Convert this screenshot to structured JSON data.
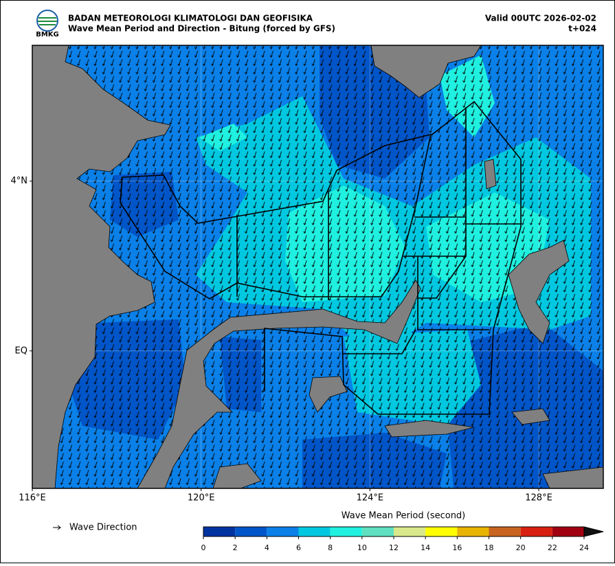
{
  "header": {
    "agency": "BADAN METEOROLOGI KLIMATOLOGI DAN GEOFISIKA",
    "title": "Wave Mean Period and Direction - Bitung (forced by GFS)",
    "valid": "Valid 00UTC 2026-02-02",
    "lead": "t+024",
    "logo": "BMKG"
  },
  "map": {
    "xlim": [
      116,
      129.53
    ],
    "ylim": [
      -3.24,
      7.2
    ],
    "xticks": [
      {
        "value": 116,
        "label": "116°E"
      },
      {
        "value": 120,
        "label": "120°E"
      },
      {
        "value": 124,
        "label": "124°E"
      },
      {
        "value": 128,
        "label": "128°E"
      }
    ],
    "yticks": [
      {
        "value": 4,
        "label": "4°N"
      },
      {
        "value": 0,
        "label": "EQ"
      }
    ],
    "grid": true
  },
  "legend": {
    "label": "Wave Direction"
  },
  "colorbar": {
    "title": "Wave Mean Period (second)",
    "ticks": [
      0,
      2,
      4,
      6,
      8,
      10,
      12,
      14,
      16,
      18,
      20,
      22,
      24
    ],
    "colors": [
      "#0033a0",
      "#0055c8",
      "#0a80e8",
      "#00c8e0",
      "#20f0e0",
      "#60e0c0",
      "#d8e88a",
      "#ffff00",
      "#e8b400",
      "#c86420",
      "#d82010",
      "#a00010"
    ]
  }
}
